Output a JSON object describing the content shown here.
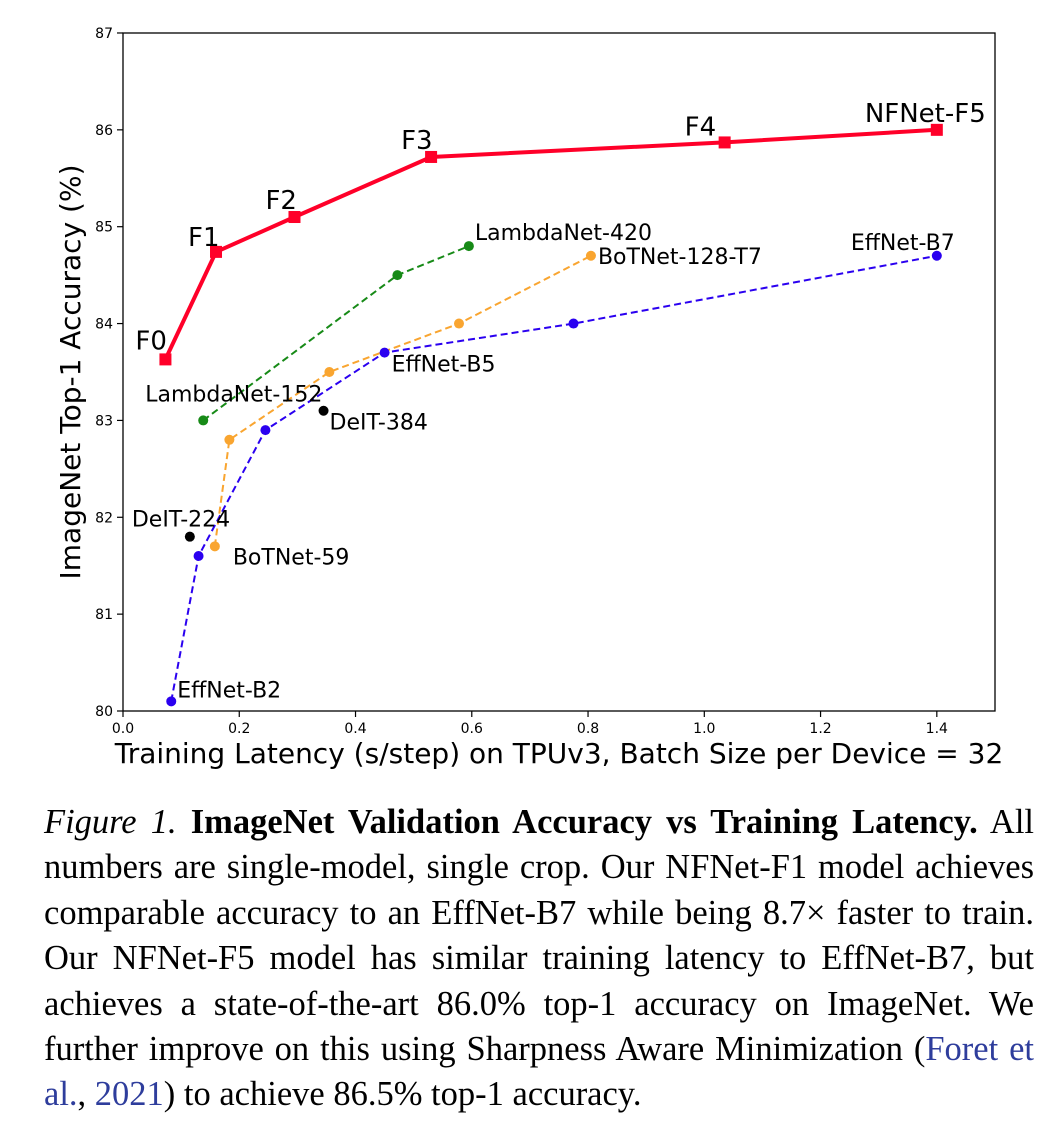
{
  "chart_data": {
    "type": "line",
    "xlabel": "Training Latency (s/step) on TPUv3, Batch Size per Device = 32",
    "ylabel": "ImageNet Top-1 Accuracy (%)",
    "xlim": [
      0.0,
      1.5
    ],
    "ylim": [
      80,
      87
    ],
    "xticks": [
      "0.0",
      "0.2",
      "0.4",
      "0.6",
      "0.8",
      "1.0",
      "1.2",
      "1.4"
    ],
    "yticks": [
      "80",
      "81",
      "82",
      "83",
      "84",
      "85",
      "86",
      "87"
    ],
    "grid": false,
    "series": [
      {
        "name": "NFNet",
        "color": "#ff0029",
        "style": "solid",
        "marker": "square",
        "points": [
          {
            "x": 0.073,
            "y": 83.63,
            "label": "F0"
          },
          {
            "x": 0.16,
            "y": 84.74,
            "label": "F1"
          },
          {
            "x": 0.295,
            "y": 85.1,
            "label": "F2"
          },
          {
            "x": 0.53,
            "y": 85.72,
            "label": "F3"
          },
          {
            "x": 1.035,
            "y": 85.87,
            "label": "F4"
          },
          {
            "x": 1.4,
            "y": 86.0,
            "label": "NFNet-F5"
          }
        ]
      },
      {
        "name": "LambdaNet",
        "color": "#178a17",
        "style": "dashed",
        "marker": "circle",
        "points": [
          {
            "x": 0.138,
            "y": 83.0,
            "label": "LambdaNet-152"
          },
          {
            "x": 0.472,
            "y": 84.5,
            "label": ""
          },
          {
            "x": 0.595,
            "y": 84.8,
            "label": "LambdaNet-420"
          }
        ]
      },
      {
        "name": "BoTNet",
        "color": "#f9a530",
        "style": "dashed",
        "marker": "circle",
        "points": [
          {
            "x": 0.158,
            "y": 81.7,
            "label": "BoTNet-59"
          },
          {
            "x": 0.183,
            "y": 82.8,
            "label": ""
          },
          {
            "x": 0.355,
            "y": 83.5,
            "label": ""
          },
          {
            "x": 0.578,
            "y": 84.0,
            "label": ""
          },
          {
            "x": 0.805,
            "y": 84.7,
            "label": "BoTNet-128-T7"
          }
        ]
      },
      {
        "name": "EfficientNet",
        "color": "#2a00f0",
        "style": "dashed",
        "marker": "circle",
        "points": [
          {
            "x": 0.083,
            "y": 80.1,
            "label": "EffNet-B2"
          },
          {
            "x": 0.13,
            "y": 81.6,
            "label": ""
          },
          {
            "x": 0.245,
            "y": 82.9,
            "label": ""
          },
          {
            "x": 0.45,
            "y": 83.7,
            "label": "EffNet-B5"
          },
          {
            "x": 0.775,
            "y": 84.0,
            "label": ""
          },
          {
            "x": 1.4,
            "y": 84.7,
            "label": "EffNet-B7"
          }
        ]
      },
      {
        "name": "DeiT",
        "color": "#000000",
        "style": "none",
        "marker": "circle",
        "points": [
          {
            "x": 0.115,
            "y": 81.8,
            "label": "DeIT-224"
          },
          {
            "x": 0.345,
            "y": 83.1,
            "label": "DeIT-384"
          }
        ]
      }
    ]
  },
  "caption": {
    "label": "Figure 1.",
    "title": "ImageNet Validation Accuracy vs Training Latency.",
    "body_1": "All numbers are single-model, single crop. Our NFNet-F1 model achieves comparable accuracy to an EffNet-B7 while being 8.7× faster to train. Our NFNet-F5 model has similar training latency to EffNet-B7, but achieves a state-of-the-art 86.0% top-1 accuracy on ImageNet. We further improve on this using Sharpness Aware Minimization (",
    "cite_author": "Foret et al.",
    "cite_sep": ", ",
    "cite_year": "2021",
    "body_2": ") to achieve 86.5% top-1 accuracy."
  }
}
